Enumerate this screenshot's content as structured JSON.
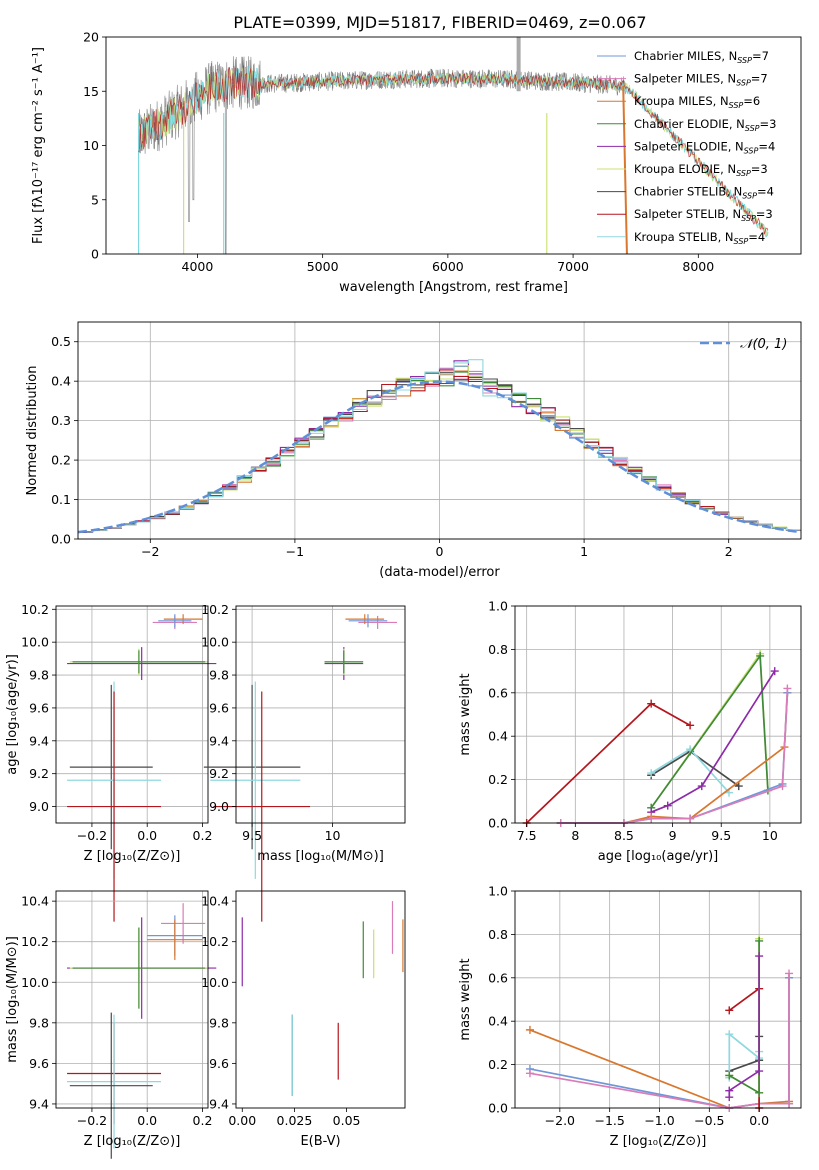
{
  "colors": {
    "chabrier_miles": "#6f97d8",
    "salpeter_miles": "#d97cb8",
    "kroupa_miles": "#d9772e",
    "chabrier_elodie": "#3f8a3a",
    "salpeter_elodie": "#8e2aa8",
    "kroupa_elodie": "#c9e070",
    "chabrier_stelib": "#4a4a4a",
    "salpeter_stelib": "#b4161d",
    "kroupa_stelib": "#8fd8df",
    "data": "#808080",
    "model": "#7dd8e0",
    "grid": "#b0b0b0",
    "gauss": "#5f8fd6"
  },
  "chart_data": [
    {
      "id": "spectrum",
      "type": "line",
      "title": "PLATE=0399, MJD=51817, FIBERID=0469, z=0.067",
      "xlabel": "wavelength [Angstrom, rest frame]",
      "ylabel": "Flux [fλ10⁻¹⁷ erg cm⁻² s⁻¹ A⁻¹]",
      "xlim": [
        3270,
        8820
      ],
      "ylim": [
        0,
        20
      ],
      "xticks": [
        4000,
        5000,
        6000,
        7000,
        8000
      ],
      "yticks": [
        0,
        5,
        10,
        15,
        20
      ],
      "grid": false,
      "legend_position": "top-right",
      "legend": [
        "Chabrier MILES, N_SSP=7",
        "Salpeter MILES, N_SSP=7",
        "Kroupa MILES, N_SSP=6",
        "Chabrier ELODIE, N_SSP=3",
        "Salpeter ELODIE, N_SSP=4",
        "Kroupa ELODIE, N_SSP=3",
        "Chabrier STELIB, N_SSP=4",
        "Salpeter STELIB, N_SSP=3",
        "Kroupa STELIB, N_SSP=4"
      ],
      "continuum": {
        "wavelength": [
          3530,
          3700,
          3900,
          4100,
          4300,
          4600,
          5000,
          5500,
          6000,
          6500,
          7000,
          7400
        ],
        "flux": [
          10.8,
          12.0,
          13.6,
          15.3,
          15.8,
          15.7,
          15.9,
          16.1,
          16.2,
          16.1,
          15.8,
          15.5
        ]
      },
      "data_range_A": [
        3530,
        7420
      ],
      "model_range_A": [
        3530,
        8560
      ]
    },
    {
      "id": "residuals",
      "type": "area",
      "xlabel": "(data-model)/error",
      "ylabel": "Normed distribution",
      "xlim": [
        -2.5,
        2.5
      ],
      "ylim": [
        0,
        0.55
      ],
      "xticks": [
        -2,
        -1,
        0,
        1,
        2
      ],
      "xtick_labels": [
        "−2",
        "−1",
        "0",
        "1",
        "2"
      ],
      "yticks": [
        0,
        0.1,
        0.2,
        0.3,
        0.4,
        0.5
      ],
      "grid": true,
      "legend_position": "top-right",
      "gauss_label": "𝒩(0, 1)",
      "bin_width": 0.1
    },
    {
      "id": "age-vs-Z",
      "type": "scatter",
      "xlabel": "Z [log₁₀(Z/Z⊙)]",
      "ylabel": "age  [log₁₀(age/yr)]",
      "xlim": [
        -0.33,
        0.22
      ],
      "ylim": [
        8.9,
        10.22
      ],
      "xticks": [
        -0.2,
        0,
        0.2
      ],
      "xtick_labels": [
        "−0.2",
        "0.0",
        "0.2"
      ],
      "yticks": [
        9.0,
        9.2,
        9.4,
        9.6,
        9.8,
        10.0,
        10.2
      ],
      "grid": true,
      "points": [
        {
          "model": "salpeter_miles",
          "x": 0.1,
          "y": 10.12,
          "xerr": 0.08,
          "yerr": 0.04
        },
        {
          "model": "kroupa_miles",
          "x": 0.13,
          "y": 10.14,
          "xerr": 0.07,
          "yerr": 0.03
        },
        {
          "model": "chabrier_miles",
          "x": 0.1,
          "y": 10.13,
          "xerr": 0.06,
          "yerr": 0.04
        },
        {
          "model": "salpeter_elodie",
          "x": -0.02,
          "y": 9.87,
          "xerr": 0.27,
          "yerr": 0.1
        },
        {
          "model": "kroupa_elodie",
          "x": -0.03,
          "y": 9.88,
          "xerr": 0.25,
          "yerr": 0.08
        },
        {
          "model": "chabrier_elodie",
          "x": -0.03,
          "y": 9.88,
          "xerr": 0.24,
          "yerr": 0.07
        },
        {
          "model": "chabrier_stelib",
          "x": -0.13,
          "y": 9.24,
          "xerr": 0.15,
          "yerr": 0.5
        },
        {
          "model": "kroupa_stelib",
          "x": -0.12,
          "y": 9.16,
          "xerr": 0.17,
          "yerr": 0.6
        },
        {
          "model": "salpeter_stelib",
          "x": -0.12,
          "y": 9.0,
          "xerr": 0.17,
          "yerr": 0.7
        }
      ]
    },
    {
      "id": "age-vs-mass",
      "type": "scatter",
      "xlabel": "mass [log₁₀(M/M⊙)]",
      "xlim": [
        9.4,
        10.45
      ],
      "ylim": [
        8.9,
        10.22
      ],
      "xticks": [
        9.5,
        10.0
      ],
      "yticks": [
        9.0,
        9.2,
        9.4,
        9.6,
        9.8,
        10.0,
        10.2
      ],
      "grid": true,
      "points": [
        {
          "model": "salpeter_miles",
          "x": 10.28,
          "y": 10.12,
          "xerr": 0.12,
          "yerr": 0.04
        },
        {
          "model": "kroupa_miles",
          "x": 10.2,
          "y": 10.14,
          "xerr": 0.12,
          "yerr": 0.03
        },
        {
          "model": "chabrier_miles",
          "x": 10.22,
          "y": 10.13,
          "xerr": 0.12,
          "yerr": 0.04
        },
        {
          "model": "salpeter_elodie",
          "x": 10.07,
          "y": 9.87,
          "xerr": 0.12,
          "yerr": 0.1
        },
        {
          "model": "kroupa_elodie",
          "x": 10.07,
          "y": 9.88,
          "xerr": 0.12,
          "yerr": 0.08
        },
        {
          "model": "chabrier_elodie",
          "x": 10.07,
          "y": 9.88,
          "xerr": 0.12,
          "yerr": 0.07
        },
        {
          "model": "chabrier_stelib",
          "x": 9.5,
          "y": 9.24,
          "xerr": 0.3,
          "yerr": 0.5
        },
        {
          "model": "kroupa_stelib",
          "x": 9.52,
          "y": 9.16,
          "xerr": 0.28,
          "yerr": 0.6
        },
        {
          "model": "salpeter_stelib",
          "x": 9.56,
          "y": 9.0,
          "xerr": 0.3,
          "yerr": 0.7
        }
      ]
    },
    {
      "id": "weight-vs-age",
      "type": "line",
      "xlabel": "age  [log₁₀(age/yr)]",
      "ylabel": "mass weight",
      "xlim": [
        7.38,
        10.32
      ],
      "ylim": [
        0,
        1.0
      ],
      "xticks": [
        7.5,
        8.0,
        8.5,
        9.0,
        9.5,
        10.0
      ],
      "yticks": [
        0.0,
        0.2,
        0.4,
        0.6,
        0.8,
        1.0
      ],
      "grid": true,
      "series": [
        {
          "model": "salpeter_stelib",
          "x": [
            7.5,
            8.78,
            9.18
          ],
          "y": [
            0.0,
            0.55,
            0.45
          ]
        },
        {
          "model": "chabrier_stelib",
          "x": [
            8.78,
            9.18,
            9.68
          ],
          "y": [
            0.22,
            0.33,
            0.17
          ]
        },
        {
          "model": "kroupa_stelib",
          "x": [
            8.78,
            9.18,
            9.58
          ],
          "y": [
            0.23,
            0.34,
            0.14
          ]
        },
        {
          "model": "kroupa_elodie",
          "x": [
            8.78,
            9.9,
            9.98
          ],
          "y": [
            0.07,
            0.78,
            0.15
          ]
        },
        {
          "model": "chabrier_elodie",
          "x": [
            8.78,
            9.9,
            9.98
          ],
          "y": [
            0.07,
            0.77,
            0.15
          ]
        },
        {
          "model": "salpeter_elodie",
          "x": [
            8.78,
            8.95,
            9.3,
            10.05
          ],
          "y": [
            0.05,
            0.08,
            0.17,
            0.7
          ]
        },
        {
          "model": "kroupa_miles",
          "x": [
            7.85,
            8.5,
            8.78,
            9.18,
            10.15,
            10.18
          ],
          "y": [
            0.0,
            0.0,
            0.03,
            0.02,
            0.35,
            0.6
          ]
        },
        {
          "model": "chabrier_miles",
          "x": [
            7.85,
            8.5,
            8.78,
            9.18,
            10.13,
            10.18
          ],
          "y": [
            0.0,
            0.0,
            0.02,
            0.02,
            0.18,
            0.6
          ]
        },
        {
          "model": "salpeter_miles",
          "x": [
            7.85,
            8.5,
            8.78,
            9.18,
            10.13,
            10.18
          ],
          "y": [
            0.0,
            0.0,
            0.02,
            0.02,
            0.17,
            0.62
          ]
        }
      ]
    },
    {
      "id": "mass-vs-Z",
      "type": "scatter",
      "xlabel": "Z [log₁₀(Z/Z⊙)]",
      "ylabel": "mass [log₁₀(M/M⊙)]",
      "xlim": [
        -0.33,
        0.22
      ],
      "ylim": [
        9.38,
        10.45
      ],
      "xticks": [
        -0.2,
        0,
        0.2
      ],
      "xtick_labels": [
        "−0.2",
        "0.0",
        "0.2"
      ],
      "yticks": [
        9.4,
        9.6,
        9.8,
        10.0,
        10.2,
        10.4
      ],
      "grid": true,
      "points": [
        {
          "model": "salpeter_miles",
          "x": 0.13,
          "y": 10.29,
          "xerr": 0.08,
          "yerr": 0.1
        },
        {
          "model": "chabrier_miles",
          "x": 0.1,
          "y": 10.23,
          "xerr": 0.1,
          "yerr": 0.1
        },
        {
          "model": "kroupa_miles",
          "x": 0.1,
          "y": 10.21,
          "xerr": 0.1,
          "yerr": 0.1
        },
        {
          "model": "salpeter_elodie",
          "x": -0.02,
          "y": 10.07,
          "xerr": 0.27,
          "yerr": 0.25
        },
        {
          "model": "kroupa_elodie",
          "x": -0.03,
          "y": 10.07,
          "xerr": 0.25,
          "yerr": 0.2
        },
        {
          "model": "chabrier_elodie",
          "x": -0.03,
          "y": 10.07,
          "xerr": 0.24,
          "yerr": 0.2
        },
        {
          "model": "salpeter_stelib",
          "x": -0.12,
          "y": 9.55,
          "xerr": 0.17,
          "yerr": 0.25
        },
        {
          "model": "kroupa_stelib",
          "x": -0.12,
          "y": 9.51,
          "xerr": 0.17,
          "yerr": 0.33
        },
        {
          "model": "chabrier_stelib",
          "x": -0.13,
          "y": 9.49,
          "xerr": 0.15,
          "yerr": 0.36
        }
      ]
    },
    {
      "id": "mass-vs-ebv",
      "type": "scatter",
      "xlabel": "E(B-V)",
      "xlim": [
        -0.003,
        0.078
      ],
      "ylim": [
        9.38,
        10.45
      ],
      "xticks": [
        0.0,
        0.025,
        0.05
      ],
      "xtick_labels": [
        "0.00",
        "0.025",
        "0.05"
      ],
      "yticks": [
        9.4,
        9.6,
        9.8,
        10.0,
        10.2,
        10.4
      ],
      "grid": false,
      "points": [
        {
          "model": "salpeter_elodie",
          "x": 0.0,
          "y": 10.15,
          "yerr": 0.17
        },
        {
          "model": "chabrier_stelib",
          "x": 0.024,
          "y": 9.64,
          "yerr": 0.2
        },
        {
          "model": "kroupa_stelib",
          "x": 0.024,
          "y": 9.64,
          "yerr": 0.2
        },
        {
          "model": "salpeter_stelib",
          "x": 0.046,
          "y": 9.66,
          "yerr": 0.14
        },
        {
          "model": "chabrier_elodie",
          "x": 0.058,
          "y": 10.16,
          "yerr": 0.14
        },
        {
          "model": "kroupa_elodie",
          "x": 0.063,
          "y": 10.14,
          "yerr": 0.12
        },
        {
          "model": "salpeter_miles",
          "x": 0.072,
          "y": 10.27,
          "yerr": 0.13
        },
        {
          "model": "kroupa_miles",
          "x": 0.077,
          "y": 10.18,
          "yerr": 0.13
        }
      ]
    },
    {
      "id": "weight-vs-Z",
      "type": "line",
      "xlabel": "Z [log₁₀(Z/Z⊙)]",
      "ylabel": "mass weight",
      "xlim": [
        -2.45,
        0.42
      ],
      "ylim": [
        0,
        1.0
      ],
      "xticks": [
        -2.0,
        -1.5,
        -1.0,
        -0.5,
        0.0
      ],
      "xtick_labels": [
        "−2.0",
        "−1.5",
        "−1.0",
        "−0.5",
        "0.0"
      ],
      "yticks": [
        0.0,
        0.2,
        0.4,
        0.6,
        0.8,
        1.0
      ],
      "grid": true,
      "series": [
        {
          "model": "kroupa_miles",
          "x": [
            -2.3,
            -0.3,
            0.0,
            0.3,
            0.3
          ],
          "y": [
            0.36,
            0.0,
            0.02,
            0.03,
            0.6
          ]
        },
        {
          "model": "chabrier_miles",
          "x": [
            -2.3,
            -0.3,
            0.0,
            0.3,
            0.3
          ],
          "y": [
            0.18,
            0.0,
            0.02,
            0.02,
            0.6
          ]
        },
        {
          "model": "salpeter_miles",
          "x": [
            -2.3,
            -0.3,
            0.0,
            0.3,
            0.3
          ],
          "y": [
            0.16,
            0.0,
            0.02,
            0.02,
            0.62
          ]
        },
        {
          "model": "salpeter_stelib",
          "x": [
            -0.3,
            0.0,
            0.0
          ],
          "y": [
            0.45,
            0.55,
            0.0
          ]
        },
        {
          "model": "chabrier_stelib",
          "x": [
            -0.3,
            0.0,
            0.0
          ],
          "y": [
            0.17,
            0.22,
            0.33
          ]
        },
        {
          "model": "kroupa_stelib",
          "x": [
            -0.3,
            -0.3,
            0.0,
            0.0
          ],
          "y": [
            0.14,
            0.34,
            0.23,
            0.26
          ]
        },
        {
          "model": "kroupa_elodie",
          "x": [
            -0.3,
            0.0,
            0.0
          ],
          "y": [
            0.15,
            0.07,
            0.78
          ]
        },
        {
          "model": "chabrier_elodie",
          "x": [
            -0.3,
            0.0,
            0.0
          ],
          "y": [
            0.15,
            0.07,
            0.77
          ]
        },
        {
          "model": "salpeter_elodie",
          "x": [
            -0.3,
            -0.3,
            0.0,
            0.0
          ],
          "y": [
            0.05,
            0.08,
            0.17,
            0.7
          ]
        }
      ]
    }
  ]
}
